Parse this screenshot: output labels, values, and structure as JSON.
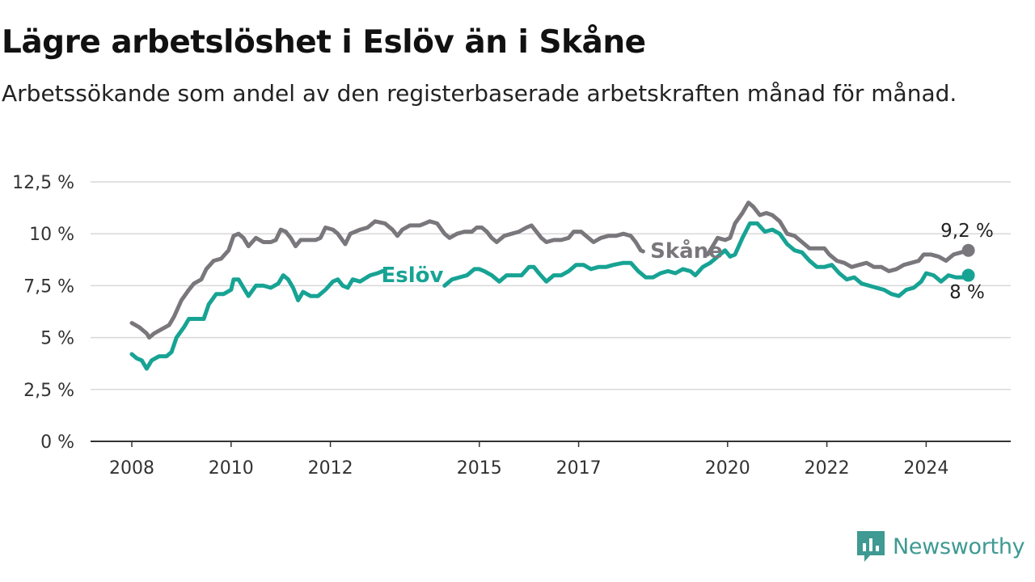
{
  "title": "Lägre arbetslöshet i Eslöv än i Skåne",
  "subtitle": "Arbetssökande som andel av den registerbaserade arbetskraften månad för månad.",
  "brand": {
    "name": "Newsworthy",
    "icon": "newsworthy-logo-icon",
    "color": "#3e9a92"
  },
  "chart_data": {
    "type": "line",
    "title": "Lägre arbetslöshet i Eslöv än i Skåne",
    "subtitle": "Arbetssökande som andel av den registerbaserade arbetskraften månad för månad.",
    "xlabel": "",
    "ylabel": "",
    "ylim": [
      0,
      12.5
    ],
    "xlim": [
      2008,
      2026.2
    ],
    "y_ticks": [
      0,
      2.5,
      5,
      7.5,
      10,
      12.5
    ],
    "y_tick_labels": [
      "0 %",
      "2,5 %",
      "5 %",
      "7,5 %",
      "10 %",
      "12,5 %"
    ],
    "x_ticks": [
      2008,
      2010,
      2012,
      2015,
      2017,
      2020,
      2022,
      2024
    ],
    "x_tick_labels": [
      "2008",
      "2010",
      "2012",
      "2015",
      "2017",
      "2020",
      "2022",
      "2024"
    ],
    "grid": true,
    "legend": "inline labels",
    "series": [
      {
        "name": "Skåne",
        "color": "#7a777c",
        "end_label": "9,2 %",
        "points": [
          [
            2008.0,
            5.7
          ],
          [
            2008.15,
            5.5
          ],
          [
            2008.3,
            5.2
          ],
          [
            2008.35,
            5.0
          ],
          [
            2008.45,
            5.2
          ],
          [
            2008.6,
            5.4
          ],
          [
            2008.75,
            5.6
          ],
          [
            2008.85,
            6.0
          ],
          [
            2009.0,
            6.8
          ],
          [
            2009.15,
            7.3
          ],
          [
            2009.25,
            7.6
          ],
          [
            2009.4,
            7.8
          ],
          [
            2009.5,
            8.3
          ],
          [
            2009.65,
            8.7
          ],
          [
            2009.8,
            8.8
          ],
          [
            2009.95,
            9.2
          ],
          [
            2010.05,
            9.9
          ],
          [
            2010.15,
            10.0
          ],
          [
            2010.25,
            9.8
          ],
          [
            2010.35,
            9.4
          ],
          [
            2010.5,
            9.8
          ],
          [
            2010.65,
            9.6
          ],
          [
            2010.8,
            9.6
          ],
          [
            2010.9,
            9.7
          ],
          [
            2011.0,
            10.2
          ],
          [
            2011.1,
            10.1
          ],
          [
            2011.2,
            9.8
          ],
          [
            2011.3,
            9.4
          ],
          [
            2011.4,
            9.7
          ],
          [
            2011.55,
            9.7
          ],
          [
            2011.7,
            9.7
          ],
          [
            2011.8,
            9.8
          ],
          [
            2011.9,
            10.3
          ],
          [
            2012.05,
            10.2
          ],
          [
            2012.15,
            10.0
          ],
          [
            2012.3,
            9.5
          ],
          [
            2012.4,
            10.0
          ],
          [
            2012.6,
            10.2
          ],
          [
            2012.75,
            10.3
          ],
          [
            2012.9,
            10.6
          ],
          [
            2013.1,
            10.5
          ],
          [
            2013.25,
            10.2
          ],
          [
            2013.35,
            9.9
          ],
          [
            2013.45,
            10.2
          ],
          [
            2013.6,
            10.4
          ],
          [
            2013.8,
            10.4
          ],
          [
            2013.9,
            10.5
          ],
          [
            2014.0,
            10.6
          ],
          [
            2014.15,
            10.5
          ],
          [
            2014.3,
            10.0
          ],
          [
            2014.4,
            9.8
          ],
          [
            2014.55,
            10.0
          ],
          [
            2014.7,
            10.1
          ],
          [
            2014.85,
            10.1
          ],
          [
            2014.95,
            10.3
          ],
          [
            2015.05,
            10.3
          ],
          [
            2015.15,
            10.1
          ],
          [
            2015.25,
            9.8
          ],
          [
            2015.35,
            9.6
          ],
          [
            2015.5,
            9.9
          ],
          [
            2015.65,
            10.0
          ],
          [
            2015.8,
            10.1
          ],
          [
            2015.95,
            10.3
          ],
          [
            2016.05,
            10.4
          ],
          [
            2016.15,
            10.1
          ],
          [
            2016.25,
            9.8
          ],
          [
            2016.35,
            9.6
          ],
          [
            2016.5,
            9.7
          ],
          [
            2016.65,
            9.7
          ],
          [
            2016.8,
            9.8
          ],
          [
            2016.9,
            10.1
          ],
          [
            2017.05,
            10.1
          ],
          [
            2017.15,
            9.9
          ],
          [
            2017.3,
            9.6
          ],
          [
            2017.45,
            9.8
          ],
          [
            2017.6,
            9.9
          ],
          [
            2017.75,
            9.9
          ],
          [
            2017.9,
            10.0
          ],
          [
            2018.05,
            9.9
          ],
          [
            2018.15,
            9.6
          ],
          [
            2018.25,
            9.2
          ],
          [
            2018.3,
            9.15
          ],
          [
            2019.6,
            9.0
          ],
          [
            2019.8,
            9.8
          ],
          [
            2019.95,
            9.7
          ],
          [
            2020.05,
            9.8
          ],
          [
            2020.15,
            10.5
          ],
          [
            2020.3,
            11.0
          ],
          [
            2020.42,
            11.5
          ],
          [
            2020.52,
            11.3
          ],
          [
            2020.65,
            10.9
          ],
          [
            2020.78,
            11.0
          ],
          [
            2020.9,
            10.9
          ],
          [
            2021.05,
            10.6
          ],
          [
            2021.2,
            10.0
          ],
          [
            2021.35,
            9.9
          ],
          [
            2021.5,
            9.6
          ],
          [
            2021.65,
            9.3
          ],
          [
            2021.8,
            9.3
          ],
          [
            2021.95,
            9.3
          ],
          [
            2022.05,
            9.0
          ],
          [
            2022.2,
            8.7
          ],
          [
            2022.35,
            8.6
          ],
          [
            2022.5,
            8.4
          ],
          [
            2022.65,
            8.5
          ],
          [
            2022.8,
            8.6
          ],
          [
            2022.95,
            8.4
          ],
          [
            2023.1,
            8.4
          ],
          [
            2023.25,
            8.2
          ],
          [
            2023.4,
            8.3
          ],
          [
            2023.55,
            8.5
          ],
          [
            2023.7,
            8.6
          ],
          [
            2023.85,
            8.7
          ],
          [
            2023.95,
            9.0
          ],
          [
            2024.1,
            9.0
          ],
          [
            2024.25,
            8.9
          ],
          [
            2024.4,
            8.7
          ],
          [
            2024.55,
            9.0
          ],
          [
            2024.7,
            9.1
          ],
          [
            2024.85,
            9.2
          ]
        ]
      },
      {
        "name": "Eslöv",
        "color": "#17a394",
        "end_label": "8 %",
        "points": [
          [
            2008.0,
            4.2
          ],
          [
            2008.1,
            4.0
          ],
          [
            2008.2,
            3.9
          ],
          [
            2008.3,
            3.5
          ],
          [
            2008.4,
            3.9
          ],
          [
            2008.55,
            4.1
          ],
          [
            2008.7,
            4.1
          ],
          [
            2008.8,
            4.3
          ],
          [
            2008.9,
            5.0
          ],
          [
            2009.05,
            5.5
          ],
          [
            2009.15,
            5.9
          ],
          [
            2009.3,
            5.9
          ],
          [
            2009.45,
            5.9
          ],
          [
            2009.55,
            6.6
          ],
          [
            2009.7,
            7.1
          ],
          [
            2009.85,
            7.1
          ],
          [
            2010.0,
            7.3
          ],
          [
            2010.05,
            7.8
          ],
          [
            2010.15,
            7.8
          ],
          [
            2010.25,
            7.4
          ],
          [
            2010.35,
            7.0
          ],
          [
            2010.5,
            7.5
          ],
          [
            2010.65,
            7.5
          ],
          [
            2010.8,
            7.4
          ],
          [
            2010.95,
            7.6
          ],
          [
            2011.05,
            8.0
          ],
          [
            2011.15,
            7.8
          ],
          [
            2011.25,
            7.4
          ],
          [
            2011.35,
            6.8
          ],
          [
            2011.45,
            7.2
          ],
          [
            2011.6,
            7.0
          ],
          [
            2011.75,
            7.0
          ],
          [
            2011.9,
            7.3
          ],
          [
            2012.05,
            7.7
          ],
          [
            2012.15,
            7.8
          ],
          [
            2012.25,
            7.5
          ],
          [
            2012.35,
            7.4
          ],
          [
            2012.45,
            7.8
          ],
          [
            2012.6,
            7.7
          ],
          [
            2012.8,
            8.0
          ],
          [
            2012.95,
            8.1
          ],
          [
            2013.05,
            8.2
          ],
          [
            2014.3,
            7.5
          ],
          [
            2014.45,
            7.8
          ],
          [
            2014.6,
            7.9
          ],
          [
            2014.75,
            8.0
          ],
          [
            2014.9,
            8.3
          ],
          [
            2015.0,
            8.3
          ],
          [
            2015.1,
            8.2
          ],
          [
            2015.25,
            8.0
          ],
          [
            2015.4,
            7.7
          ],
          [
            2015.55,
            8.0
          ],
          [
            2015.7,
            8.0
          ],
          [
            2015.85,
            8.0
          ],
          [
            2016.0,
            8.4
          ],
          [
            2016.1,
            8.4
          ],
          [
            2016.2,
            8.1
          ],
          [
            2016.35,
            7.7
          ],
          [
            2016.5,
            8.0
          ],
          [
            2016.65,
            8.0
          ],
          [
            2016.8,
            8.2
          ],
          [
            2016.95,
            8.5
          ],
          [
            2017.1,
            8.5
          ],
          [
            2017.25,
            8.3
          ],
          [
            2017.4,
            8.4
          ],
          [
            2017.55,
            8.4
          ],
          [
            2017.7,
            8.5
          ],
          [
            2017.9,
            8.6
          ],
          [
            2018.05,
            8.6
          ],
          [
            2018.2,
            8.2
          ],
          [
            2018.35,
            7.9
          ],
          [
            2018.5,
            7.9
          ],
          [
            2018.65,
            8.1
          ],
          [
            2018.8,
            8.2
          ],
          [
            2018.95,
            8.1
          ],
          [
            2019.1,
            8.3
          ],
          [
            2019.25,
            8.2
          ],
          [
            2019.35,
            8.0
          ],
          [
            2019.5,
            8.4
          ],
          [
            2019.65,
            8.6
          ],
          [
            2019.95,
            9.2
          ],
          [
            2020.05,
            8.9
          ],
          [
            2020.15,
            9.0
          ],
          [
            2020.3,
            9.8
          ],
          [
            2020.45,
            10.5
          ],
          [
            2020.6,
            10.5
          ],
          [
            2020.75,
            10.1
          ],
          [
            2020.9,
            10.2
          ],
          [
            2021.05,
            10.0
          ],
          [
            2021.2,
            9.5
          ],
          [
            2021.35,
            9.2
          ],
          [
            2021.5,
            9.1
          ],
          [
            2021.65,
            8.7
          ],
          [
            2021.8,
            8.4
          ],
          [
            2021.95,
            8.4
          ],
          [
            2022.1,
            8.5
          ],
          [
            2022.25,
            8.1
          ],
          [
            2022.4,
            7.8
          ],
          [
            2022.55,
            7.9
          ],
          [
            2022.7,
            7.6
          ],
          [
            2022.85,
            7.5
          ],
          [
            2023.0,
            7.4
          ],
          [
            2023.15,
            7.3
          ],
          [
            2023.3,
            7.1
          ],
          [
            2023.45,
            7.0
          ],
          [
            2023.6,
            7.3
          ],
          [
            2023.75,
            7.4
          ],
          [
            2023.9,
            7.7
          ],
          [
            2024.0,
            8.1
          ],
          [
            2024.15,
            8.0
          ],
          [
            2024.3,
            7.7
          ],
          [
            2024.45,
            8.0
          ],
          [
            2024.6,
            7.9
          ],
          [
            2024.75,
            7.9
          ],
          [
            2024.85,
            8.0
          ]
        ]
      }
    ]
  }
}
